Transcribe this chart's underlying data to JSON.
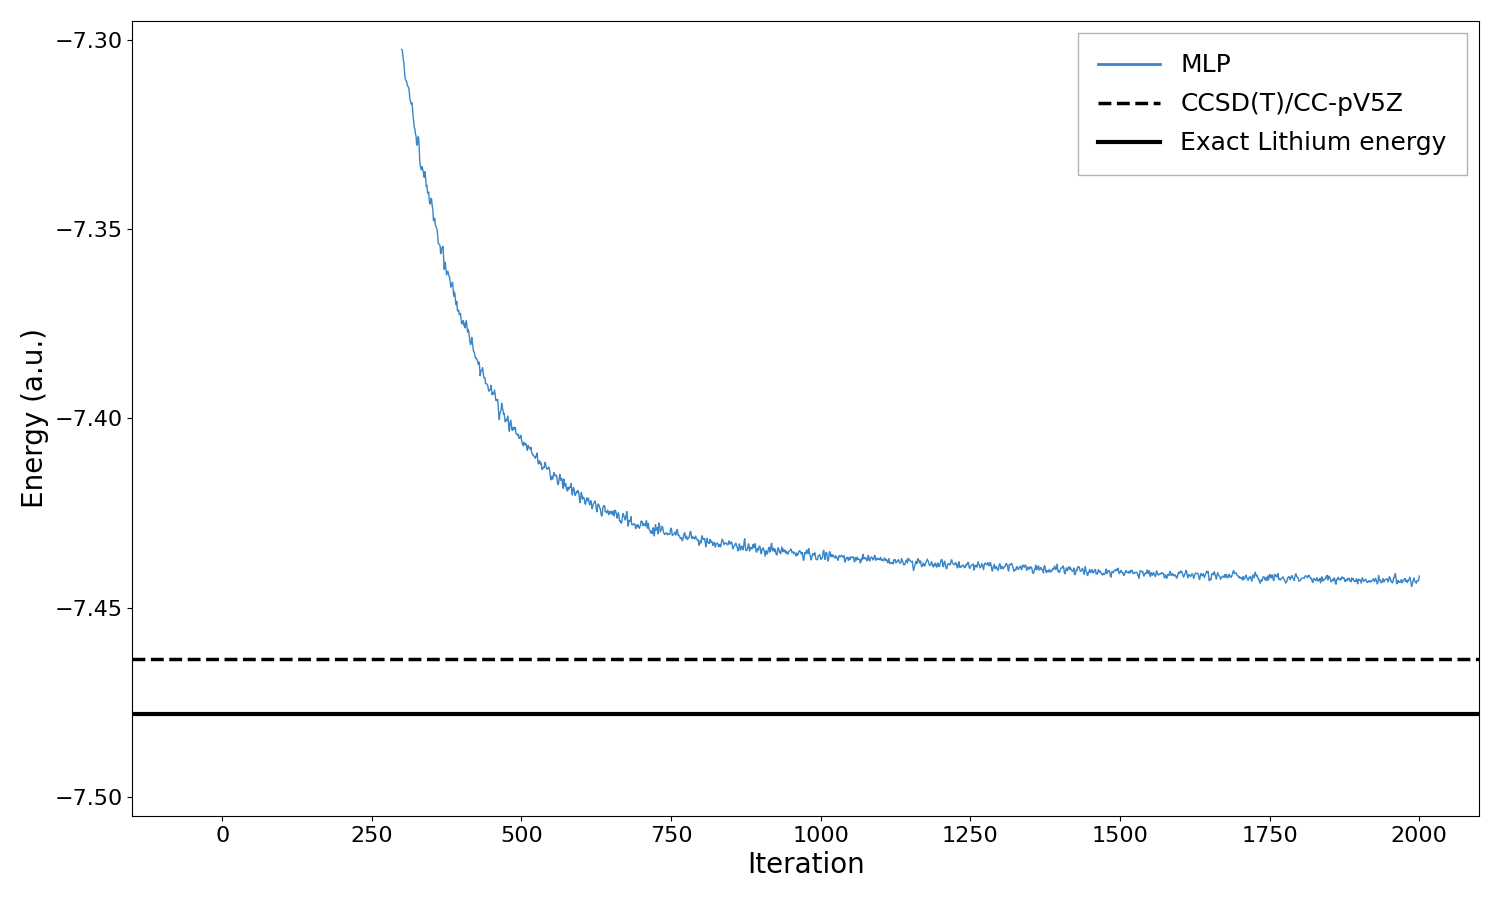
{
  "ccsd_energy": -7.4636,
  "exact_energy": -7.4781,
  "mlp_start_iter": 300,
  "mlp_end_iter": 2000,
  "mlp_start_energy": -7.302,
  "mlp_end_energy": -7.4455,
  "ylim": [
    -7.505,
    -7.295
  ],
  "xlim": [
    -150,
    2100
  ],
  "ylabel": "Energy (a.u.)",
  "xlabel": "Iteration",
  "legend_labels": [
    "MLP",
    "CCSD(T)/CC-pV5Z",
    "Exact Lithium energy"
  ],
  "mlp_color": "#3a86c8",
  "ccsd_color": "black",
  "exact_color": "black",
  "yticks": [
    -7.3,
    -7.35,
    -7.4,
    -7.45,
    -7.5
  ],
  "xticks": [
    0,
    250,
    500,
    750,
    1000,
    1250,
    1500,
    1750,
    2000
  ]
}
